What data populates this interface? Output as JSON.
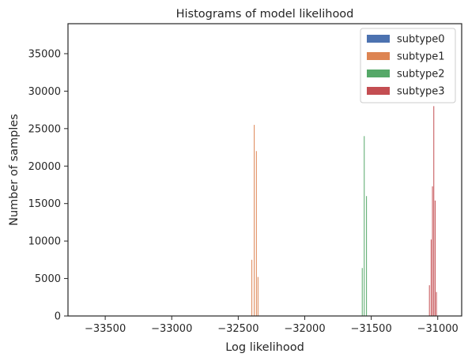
{
  "chart_data": {
    "type": "bar",
    "title": "Histograms of model likelihood",
    "xlabel": "Log likelihood",
    "ylabel": "Number of samples",
    "xlim": [
      -33780,
      -30820
    ],
    "ylim": [
      0,
      39000
    ],
    "xticks": [
      -33500,
      -33000,
      -32500,
      -32000,
      -31500,
      -31000
    ],
    "xtick_labels": [
      "−33500",
      "−33000",
      "−32500",
      "−32000",
      "−31500",
      "−31000"
    ],
    "yticks": [
      0,
      5000,
      10000,
      15000,
      20000,
      25000,
      30000,
      35000
    ],
    "yticks_labels": [
      "0",
      "5000",
      "10000",
      "15000",
      "20000",
      "25000",
      "30000",
      "35000"
    ],
    "grid": false,
    "legend_position": "top-right",
    "series": [
      {
        "name": "subtype0",
        "color": "#4c72b0",
        "bin_width": 5,
        "bars": []
      },
      {
        "name": "subtype1",
        "color": "#dd8452",
        "bin_width": 5,
        "bars": [
          {
            "x": -32398,
            "y": 7500
          },
          {
            "x": -32380,
            "y": 25500
          },
          {
            "x": -32364,
            "y": 22000
          },
          {
            "x": -32352,
            "y": 5200
          }
        ]
      },
      {
        "name": "subtype2",
        "color": "#55a868",
        "bin_width": 5,
        "bars": [
          {
            "x": -31568,
            "y": 6400
          },
          {
            "x": -31553,
            "y": 24000
          },
          {
            "x": -31536,
            "y": 16000
          }
        ]
      },
      {
        "name": "subtype3",
        "color": "#c44e52",
        "bin_width": 5,
        "bars": [
          {
            "x": -31063,
            "y": 4100
          },
          {
            "x": -31050,
            "y": 10200
          },
          {
            "x": -31040,
            "y": 17300
          },
          {
            "x": -31030,
            "y": 28000
          },
          {
            "x": -31020,
            "y": 15400
          },
          {
            "x": -31010,
            "y": 3200
          }
        ]
      }
    ]
  }
}
